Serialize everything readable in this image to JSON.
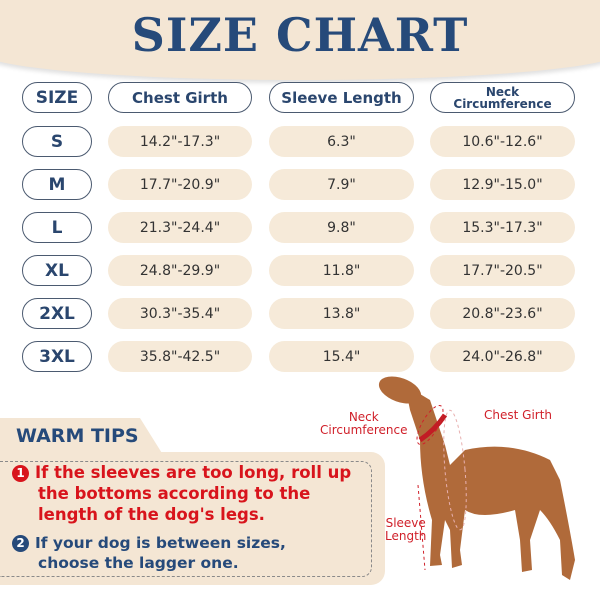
{
  "title": "SIZE CHART",
  "headers": [
    "SIZE",
    "Chest Girth",
    "Sleeve Length",
    "Neck",
    "Circumference"
  ],
  "rows": [
    {
      "size": "S",
      "chest": "14.2\"-17.3\"",
      "sleeve": "6.3\"",
      "neck": "10.6\"-12.6\""
    },
    {
      "size": "M",
      "chest": "17.7\"-20.9\"",
      "sleeve": "7.9\"",
      "neck": "12.9\"-15.0\""
    },
    {
      "size": "L",
      "chest": "21.3\"-24.4\"",
      "sleeve": "9.8\"",
      "neck": "15.3\"-17.3\""
    },
    {
      "size": "XL",
      "chest": "24.8\"-29.9\"",
      "sleeve": "11.8\"",
      "neck": "17.7\"-20.5\""
    },
    {
      "size": "2XL",
      "chest": "30.3\"-35.4\"",
      "sleeve": "13.8\"",
      "neck": "20.8\"-23.6\""
    },
    {
      "size": "3XL",
      "chest": "35.8\"-42.5\"",
      "sleeve": "15.4\"",
      "neck": "24.0\"-26.8\""
    }
  ],
  "tips": {
    "heading": "WARM TIPS",
    "tip1_num": "1",
    "tip1_lines": [
      "If the sleeves are too long, roll up",
      "the bottoms according to the",
      "length of  the dog's legs."
    ],
    "tip2_num": "2",
    "tip2_lines": [
      "If your dog is between sizes,",
      "choose the lagger one."
    ]
  },
  "dog_labels": {
    "neck1": "Neck",
    "neck2": "Circumference",
    "chest": "Chest Girth",
    "sleeve1": "Sleeve",
    "sleeve2": "Length"
  },
  "colors": {
    "navy": "#264a7a",
    "cream": "#f4e6d4",
    "red": "#d8141c"
  }
}
